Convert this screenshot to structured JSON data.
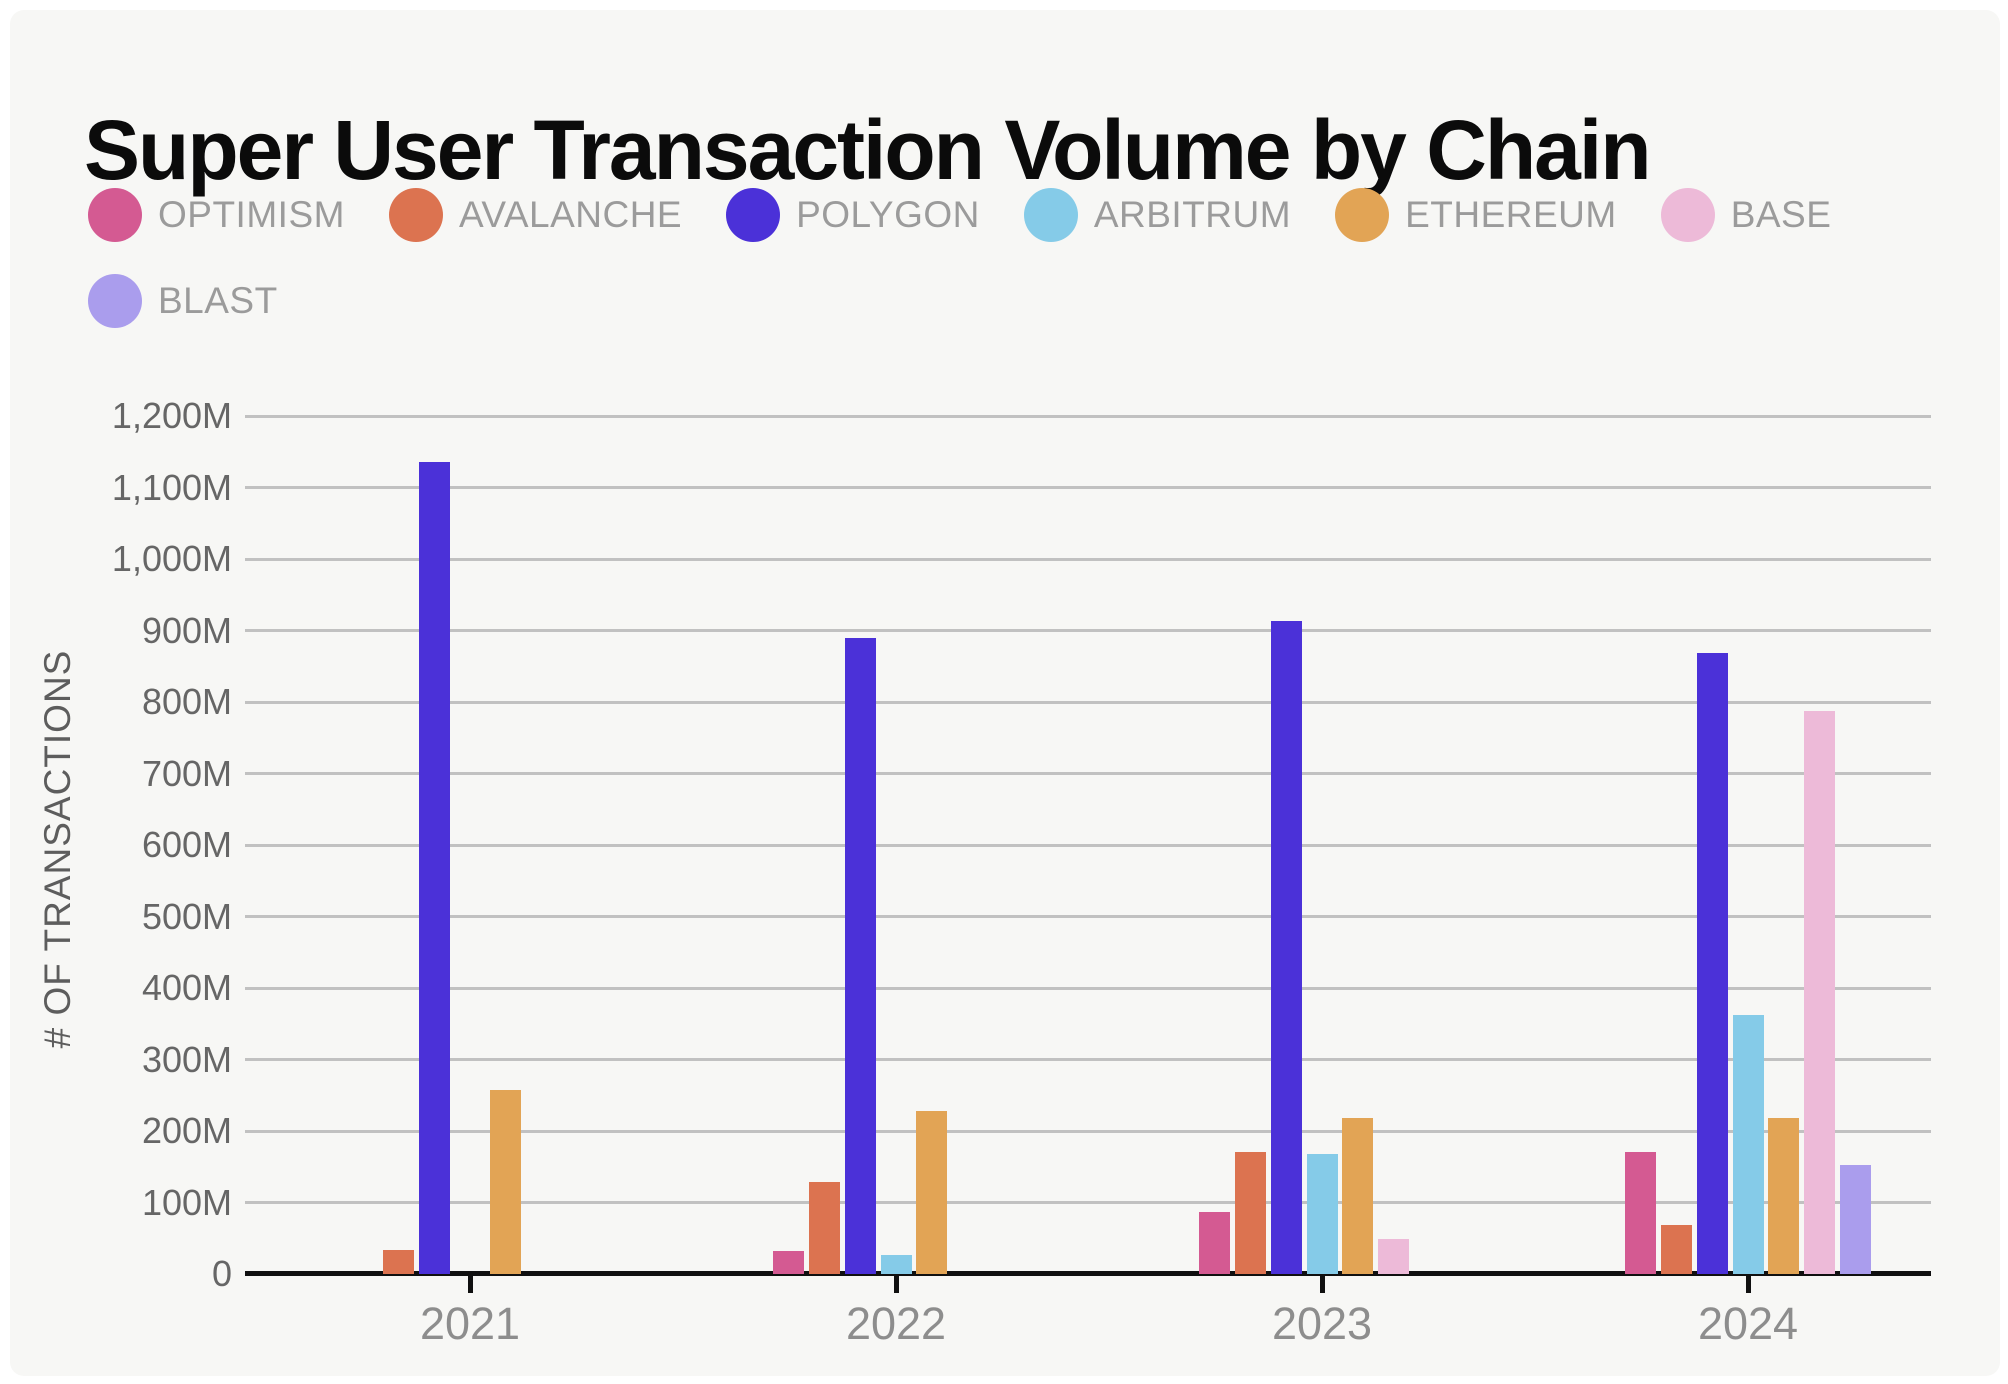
{
  "title": "Super User Transaction Volume by Chain",
  "legend": [
    {
      "name": "OPTIMISM",
      "color": "#d45a92"
    },
    {
      "name": "AVALANCHE",
      "color": "#dc7350"
    },
    {
      "name": "POLYGON",
      "color": "#4b31d8"
    },
    {
      "name": "ARBITRUM",
      "color": "#85cbe8"
    },
    {
      "name": "ETHEREUM",
      "color": "#e2a455"
    },
    {
      "name": "BASE",
      "color": "#edbad8"
    },
    {
      "name": "BLAST",
      "color": "#aa9ded"
    }
  ],
  "chart_data": {
    "type": "bar",
    "title": "Super User Transaction Volume by Chain",
    "categories": [
      "2021",
      "2022",
      "2023",
      "2024"
    ],
    "series": [
      {
        "name": "OPTIMISM",
        "color": "#d45a92",
        "values": [
          null,
          32,
          87,
          171
        ]
      },
      {
        "name": "AVALANCHE",
        "color": "#dc7350",
        "values": [
          33,
          128,
          171,
          69
        ]
      },
      {
        "name": "POLYGON",
        "color": "#4b31d8",
        "values": [
          1136,
          889,
          913,
          868
        ]
      },
      {
        "name": "ARBITRUM",
        "color": "#85cbe8",
        "values": [
          null,
          27,
          168,
          362
        ]
      },
      {
        "name": "ETHEREUM",
        "color": "#e2a455",
        "values": [
          258,
          228,
          218,
          218
        ]
      },
      {
        "name": "BASE",
        "color": "#edbad8",
        "values": [
          null,
          null,
          49,
          787
        ]
      },
      {
        "name": "BLAST",
        "color": "#aa9ded",
        "values": [
          null,
          null,
          null,
          152
        ]
      }
    ],
    "unit": "M",
    "xlabel": "",
    "ylabel": "# OF TRANSACTIONS",
    "ylim": [
      0,
      1200
    ],
    "ytick_step": 100,
    "ytick_labels": [
      "0",
      "100M",
      "200M",
      "300M",
      "400M",
      "500M",
      "600M",
      "700M",
      "800M",
      "900M",
      "1,000M",
      "1,100M",
      "1,200M"
    ],
    "grid": true,
    "legend_position": "top"
  }
}
